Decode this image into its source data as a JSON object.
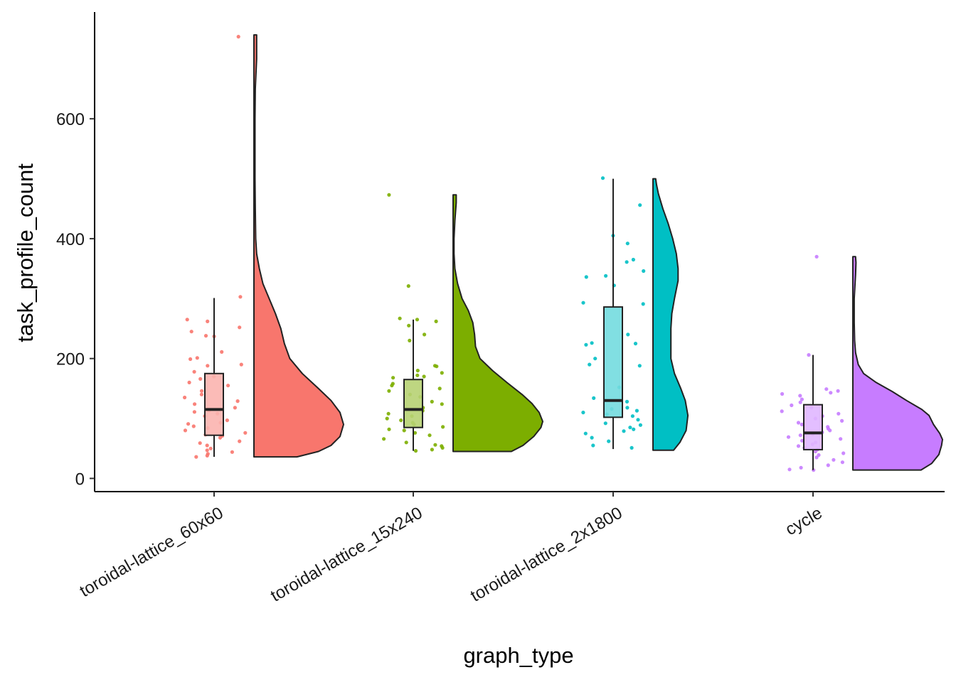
{
  "chart_data": {
    "type": "raincloud",
    "title": "",
    "xlabel": "graph_type",
    "ylabel": "task_profile_count",
    "ylim": [
      -22,
      778
    ],
    "yticks": [
      0,
      200,
      400,
      600
    ],
    "grid": false,
    "legend": "none",
    "categories": [
      "toroidal-lattice_60x60",
      "toroidal-lattice_15x240",
      "toroidal-lattice_2x1800",
      "cycle"
    ],
    "colors": [
      "#F8766D",
      "#7CAE00",
      "#00BFC4",
      "#C77CFF"
    ],
    "series": [
      {
        "category": "toroidal-lattice_60x60",
        "box": {
          "min": 36,
          "q1": 72,
          "median": 115,
          "q3": 175,
          "max": 301
        },
        "density_max_at": 90,
        "density": [
          [
            36,
            0.48
          ],
          [
            45,
            0.72
          ],
          [
            55,
            0.86
          ],
          [
            70,
            0.96
          ],
          [
            90,
            1.0
          ],
          [
            110,
            0.96
          ],
          [
            130,
            0.86
          ],
          [
            150,
            0.72
          ],
          [
            175,
            0.54
          ],
          [
            200,
            0.4
          ],
          [
            225,
            0.34
          ],
          [
            250,
            0.3
          ],
          [
            275,
            0.24
          ],
          [
            300,
            0.17
          ],
          [
            325,
            0.1
          ],
          [
            350,
            0.06
          ],
          [
            375,
            0.03
          ],
          [
            400,
            0.02
          ],
          [
            450,
            0.015
          ],
          [
            500,
            0.012
          ],
          [
            550,
            0.012
          ],
          [
            600,
            0.012
          ],
          [
            650,
            0.015
          ],
          [
            700,
            0.03
          ],
          [
            740,
            0.03
          ]
        ],
        "points": [
          737,
          303,
          265,
          262,
          252,
          245,
          238,
          237,
          211,
          201,
          199,
          190,
          188,
          178,
          170,
          166,
          160,
          155,
          146,
          140,
          135,
          129,
          124,
          118,
          113,
          111,
          108,
          104,
          97,
          93,
          91,
          87,
          84,
          80,
          76,
          73,
          71,
          68,
          62,
          59,
          55,
          50,
          47,
          44,
          41,
          38,
          36
        ]
      },
      {
        "category": "toroidal-lattice_15x240",
        "box": {
          "min": 46,
          "q1": 85,
          "median": 115,
          "q3": 165,
          "max": 265
        },
        "density_max_at": 95,
        "density": [
          [
            45,
            0.65
          ],
          [
            55,
            0.78
          ],
          [
            70,
            0.9
          ],
          [
            85,
            0.98
          ],
          [
            95,
            1.0
          ],
          [
            110,
            0.96
          ],
          [
            125,
            0.88
          ],
          [
            140,
            0.77
          ],
          [
            160,
            0.6
          ],
          [
            180,
            0.44
          ],
          [
            200,
            0.3
          ],
          [
            220,
            0.25
          ],
          [
            240,
            0.24
          ],
          [
            260,
            0.22
          ],
          [
            280,
            0.17
          ],
          [
            300,
            0.1
          ],
          [
            325,
            0.05
          ],
          [
            350,
            0.02
          ],
          [
            375,
            0.01
          ],
          [
            400,
            0.01
          ],
          [
            430,
            0.02
          ],
          [
            460,
            0.035
          ],
          [
            473,
            0.035
          ]
        ],
        "points": [
          473,
          321,
          267,
          265,
          262,
          255,
          240,
          230,
          188,
          187,
          180,
          176,
          172,
          170,
          168,
          158,
          155,
          150,
          146,
          140,
          136,
          128,
          124,
          118,
          113,
          108,
          104,
          100,
          97,
          93,
          90,
          86,
          82,
          80,
          76,
          72,
          66,
          60,
          56,
          54,
          51,
          48,
          46
        ]
      },
      {
        "category": "toroidal-lattice_2x1800",
        "box": {
          "min": 49,
          "q1": 102,
          "median": 130,
          "q3": 286,
          "max": 500
        },
        "density_max_at": 105,
        "density": [
          [
            47,
            0.23
          ],
          [
            60,
            0.3
          ],
          [
            80,
            0.37
          ],
          [
            105,
            0.39
          ],
          [
            130,
            0.36
          ],
          [
            150,
            0.31
          ],
          [
            175,
            0.24
          ],
          [
            200,
            0.2
          ],
          [
            225,
            0.2
          ],
          [
            250,
            0.2
          ],
          [
            275,
            0.21
          ],
          [
            300,
            0.24
          ],
          [
            330,
            0.28
          ],
          [
            350,
            0.28
          ],
          [
            375,
            0.26
          ],
          [
            400,
            0.22
          ],
          [
            425,
            0.17
          ],
          [
            450,
            0.11
          ],
          [
            475,
            0.06
          ],
          [
            490,
            0.04
          ],
          [
            500,
            0.03
          ]
        ],
        "points": [
          501,
          456,
          405,
          392,
          365,
          361,
          346,
          338,
          336,
          322,
          293,
          291,
          240,
          226,
          225,
          223,
          200,
          190,
          188,
          152,
          134,
          128,
          118,
          116,
          113,
          110,
          107,
          104,
          98,
          92,
          89,
          85,
          82,
          79,
          75,
          68,
          62,
          55,
          51
        ]
      },
      {
        "category": "cycle",
        "box": {
          "min": 14,
          "q1": 48,
          "median": 76,
          "q3": 123,
          "max": 206
        },
        "density_max_at": 62,
        "density": [
          [
            14,
            0.76
          ],
          [
            25,
            0.88
          ],
          [
            40,
            0.96
          ],
          [
            55,
            0.99
          ],
          [
            65,
            1.0
          ],
          [
            75,
            0.97
          ],
          [
            90,
            0.9
          ],
          [
            105,
            0.85
          ],
          [
            115,
            0.77
          ],
          [
            130,
            0.6
          ],
          [
            145,
            0.44
          ],
          [
            160,
            0.26
          ],
          [
            175,
            0.12
          ],
          [
            190,
            0.06
          ],
          [
            210,
            0.03
          ],
          [
            230,
            0.02
          ],
          [
            260,
            0.015
          ],
          [
            300,
            0.015
          ],
          [
            340,
            0.03
          ],
          [
            360,
            0.035
          ],
          [
            370,
            0.03
          ]
        ],
        "points": [
          370,
          206,
          149,
          146,
          143,
          141,
          138,
          132,
          127,
          122,
          118,
          112,
          108,
          104,
          100,
          96,
          93,
          90,
          86,
          83,
          80,
          77,
          74,
          72,
          69,
          66,
          63,
          60,
          57,
          54,
          51,
          48,
          45,
          42,
          39,
          35,
          31,
          27,
          22,
          18,
          15,
          14
        ]
      }
    ]
  }
}
